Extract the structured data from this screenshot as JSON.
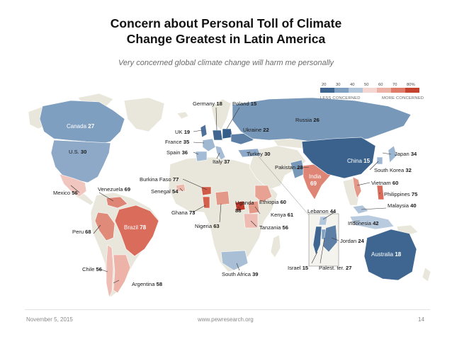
{
  "title_line1": "Concern about Personal Toll of Climate",
  "title_line2": "Change Greatest in Latin America",
  "subtitle": "Very concerned global climate change will harm me personally",
  "legend": {
    "ticks": [
      "20",
      "30",
      "40",
      "50",
      "60",
      "70",
      "80%"
    ],
    "less_label": "LESS CONCERNED",
    "more_label": "MORE CONCERNED",
    "colors": [
      "#3d6590",
      "#7f9fc0",
      "#b3c7dc",
      "#f4d7d2",
      "#ecb2a6",
      "#de7b69",
      "#c4432f"
    ]
  },
  "countries": [
    {
      "name": "Canada",
      "value": "27"
    },
    {
      "name": "U.S.",
      "value": "30"
    },
    {
      "name": "Mexico",
      "value": "56"
    },
    {
      "name": "Venezuela",
      "value": "69"
    },
    {
      "name": "Brazil",
      "value": "78"
    },
    {
      "name": "Peru",
      "value": "68"
    },
    {
      "name": "Chile",
      "value": "56"
    },
    {
      "name": "Argentina",
      "value": "58"
    },
    {
      "name": "Germany",
      "value": "18"
    },
    {
      "name": "Poland",
      "value": "15"
    },
    {
      "name": "UK",
      "value": "19"
    },
    {
      "name": "France",
      "value": "35"
    },
    {
      "name": "Spain",
      "value": "36"
    },
    {
      "name": "Italy",
      "value": "37"
    },
    {
      "name": "Ukraine",
      "value": "22"
    },
    {
      "name": "Russia",
      "value": "26"
    },
    {
      "name": "Turkey",
      "value": "30"
    },
    {
      "name": "Burkina Faso",
      "value": "77"
    },
    {
      "name": "Senegal",
      "value": "54"
    },
    {
      "name": "Ghana",
      "value": "73"
    },
    {
      "name": "Nigeria",
      "value": "63"
    },
    {
      "name": "Uganda",
      "value": "88"
    },
    {
      "name": "Ethiopia",
      "value": "60"
    },
    {
      "name": "Kenya",
      "value": "61"
    },
    {
      "name": "Tanzania",
      "value": "56"
    },
    {
      "name": "South Africa",
      "value": "39"
    },
    {
      "name": "Pakistan",
      "value": "28"
    },
    {
      "name": "India",
      "value": "69"
    },
    {
      "name": "China",
      "value": "15"
    },
    {
      "name": "Japan",
      "value": "34"
    },
    {
      "name": "South Korea",
      "value": "32"
    },
    {
      "name": "Vietnam",
      "value": "60"
    },
    {
      "name": "Philippines",
      "value": "75"
    },
    {
      "name": "Malaysia",
      "value": "40"
    },
    {
      "name": "Indonesia",
      "value": "42"
    },
    {
      "name": "Lebanon",
      "value": "44"
    },
    {
      "name": "Jordan",
      "value": "24"
    },
    {
      "name": "Israel",
      "value": "15"
    },
    {
      "name": "Palest. ter.",
      "value": "27"
    },
    {
      "name": "Australia",
      "value": "18"
    }
  ],
  "footer": {
    "date": "November 5, 2015",
    "url": "www.pewresearch.org",
    "page": "14"
  }
}
